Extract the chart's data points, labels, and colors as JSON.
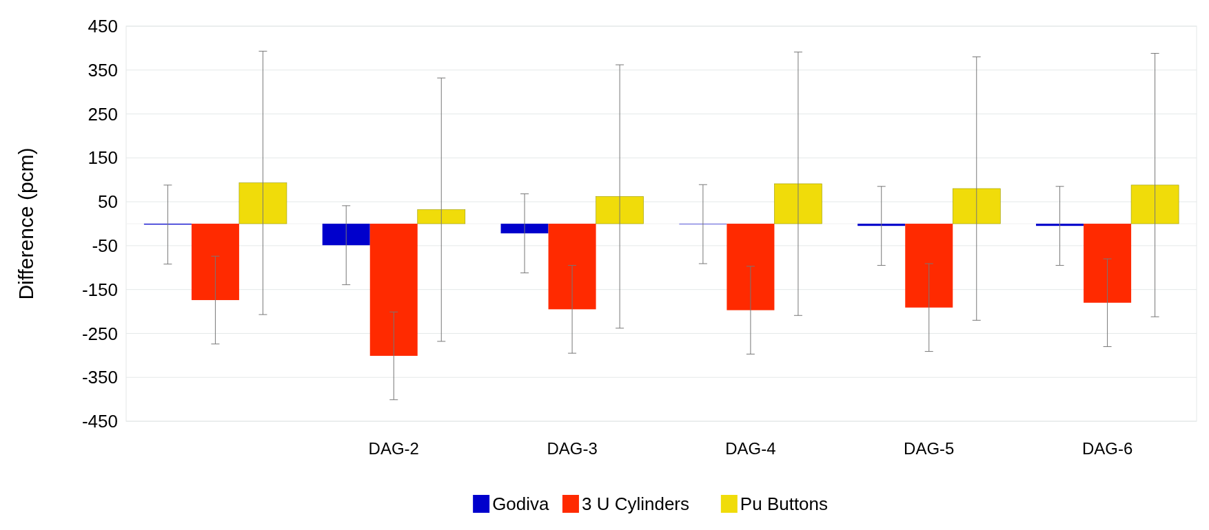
{
  "chart_data": {
    "type": "bar",
    "ylabel": "Difference (pcm)",
    "categories": [
      null,
      "DAG-2",
      "DAG-3",
      "DAG-4",
      "DAG-5",
      "DAG-6"
    ],
    "series": [
      {
        "name": "Godiva",
        "color": "#0000cc",
        "values": [
          -2,
          -49,
          -22,
          -1,
          -5,
          -5
        ],
        "errors": [
          90,
          90,
          90,
          90,
          90,
          90
        ]
      },
      {
        "name": "3 U Cylinders",
        "color": "#ff2a00",
        "values": [
          -174,
          -301,
          -195,
          -197,
          -191,
          -180
        ],
        "errors": [
          100,
          100,
          100,
          100,
          100,
          100
        ]
      },
      {
        "name": "Pu Buttons",
        "color": "#f0dc0a",
        "values": [
          93,
          32,
          62,
          91,
          80,
          88
        ],
        "errors": [
          300,
          300,
          300,
          300,
          300,
          300
        ]
      }
    ],
    "ylim": [
      -450,
      450
    ],
    "yticks": [
      -450,
      -350,
      -250,
      -150,
      -50,
      50,
      150,
      250,
      350,
      450
    ],
    "grid": "y",
    "legend": "bottom"
  }
}
